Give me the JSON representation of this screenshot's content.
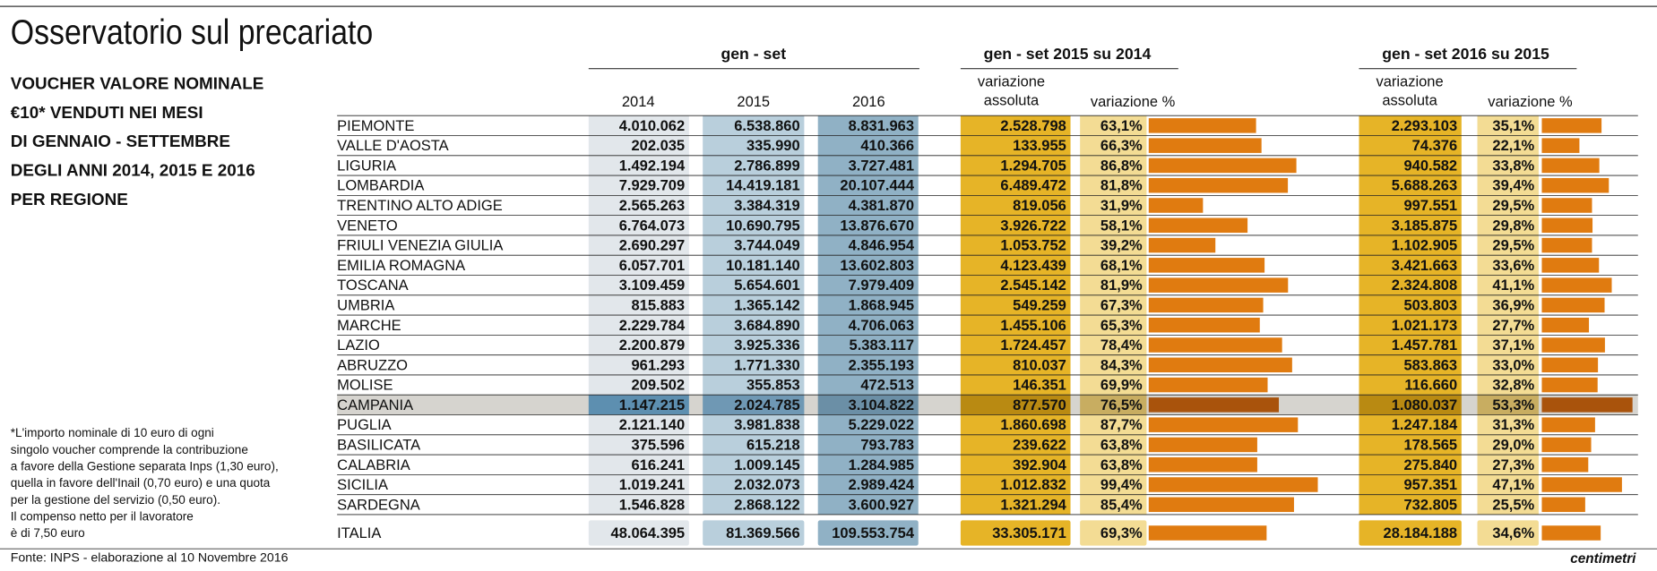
{
  "title": "Osservatorio sul precariato",
  "subtitle": [
    "VOUCHER VALORE NOMINALE",
    "€10* VENDUTI NEI MESI",
    "DI GENNAIO - SETTEMBRE",
    "DEGLI ANNI 2014, 2015 E 2016",
    "PER REGIONE"
  ],
  "headers": {
    "group1": "gen - set",
    "group2": "gen - set 2015 su 2014",
    "group3": "gen - set 2016 su 2015",
    "y2014": "2014",
    "y2015": "2015",
    "y2016": "2016",
    "abs1": [
      "variazione",
      "assoluta"
    ],
    "pct1": "variazione %",
    "abs2": [
      "variazione",
      "assoluta"
    ],
    "pct2": "variazione %"
  },
  "rows": [
    {
      "region": "PIEMONTE",
      "y2014": "4.010.062",
      "y2015": "6.538.860",
      "y2016": "8.831.963",
      "abs1": "2.528.798",
      "pct1": 63.1,
      "pct1_label": "63,1%",
      "abs2": "2.293.103",
      "pct2": 35.1,
      "pct2_label": "35,1%"
    },
    {
      "region": "VALLE D'AOSTA",
      "y2014": "202.035",
      "y2015": "335.990",
      "y2016": "410.366",
      "abs1": "133.955",
      "pct1": 66.3,
      "pct1_label": "66,3%",
      "abs2": "74.376",
      "pct2": 22.1,
      "pct2_label": "22,1%"
    },
    {
      "region": "LIGURIA",
      "y2014": "1.492.194",
      "y2015": "2.786.899",
      "y2016": "3.727.481",
      "abs1": "1.294.705",
      "pct1": 86.8,
      "pct1_label": "86,8%",
      "abs2": "940.582",
      "pct2": 33.8,
      "pct2_label": "33,8%"
    },
    {
      "region": "LOMBARDIA",
      "y2014": "7.929.709",
      "y2015": "14.419.181",
      "y2016": "20.107.444",
      "abs1": "6.489.472",
      "pct1": 81.8,
      "pct1_label": "81,8%",
      "abs2": "5.688.263",
      "pct2": 39.4,
      "pct2_label": "39,4%"
    },
    {
      "region": "TRENTINO ALTO ADIGE",
      "y2014": "2.565.263",
      "y2015": "3.384.319",
      "y2016": "4.381.870",
      "abs1": "819.056",
      "pct1": 31.9,
      "pct1_label": "31,9%",
      "abs2": "997.551",
      "pct2": 29.5,
      "pct2_label": "29,5%"
    },
    {
      "region": "VENETO",
      "y2014": "6.764.073",
      "y2015": "10.690.795",
      "y2016": "13.876.670",
      "abs1": "3.926.722",
      "pct1": 58.1,
      "pct1_label": "58,1%",
      "abs2": "3.185.875",
      "pct2": 29.8,
      "pct2_label": "29,8%"
    },
    {
      "region": "FRIULI VENEZIA GIULIA",
      "y2014": "2.690.297",
      "y2015": "3.744.049",
      "y2016": "4.846.954",
      "abs1": "1.053.752",
      "pct1": 39.2,
      "pct1_label": "39,2%",
      "abs2": "1.102.905",
      "pct2": 29.5,
      "pct2_label": "29,5%"
    },
    {
      "region": "EMILIA ROMAGNA",
      "y2014": "6.057.701",
      "y2015": "10.181.140",
      "y2016": "13.602.803",
      "abs1": "4.123.439",
      "pct1": 68.1,
      "pct1_label": "68,1%",
      "abs2": "3.421.663",
      "pct2": 33.6,
      "pct2_label": "33,6%"
    },
    {
      "region": "TOSCANA",
      "y2014": "3.109.459",
      "y2015": "5.654.601",
      "y2016": "7.979.409",
      "abs1": "2.545.142",
      "pct1": 81.9,
      "pct1_label": "81,9%",
      "abs2": "2.324.808",
      "pct2": 41.1,
      "pct2_label": "41,1%"
    },
    {
      "region": "UMBRIA",
      "y2014": "815.883",
      "y2015": "1.365.142",
      "y2016": "1.868.945",
      "abs1": "549.259",
      "pct1": 67.3,
      "pct1_label": "67,3%",
      "abs2": "503.803",
      "pct2": 36.9,
      "pct2_label": "36,9%"
    },
    {
      "region": "MARCHE",
      "y2014": "2.229.784",
      "y2015": "3.684.890",
      "y2016": "4.706.063",
      "abs1": "1.455.106",
      "pct1": 65.3,
      "pct1_label": "65,3%",
      "abs2": "1.021.173",
      "pct2": 27.7,
      "pct2_label": "27,7%"
    },
    {
      "region": "LAZIO",
      "y2014": "2.200.879",
      "y2015": "3.925.336",
      "y2016": "5.383.117",
      "abs1": "1.724.457",
      "pct1": 78.4,
      "pct1_label": "78,4%",
      "abs2": "1.457.781",
      "pct2": 37.1,
      "pct2_label": "37,1%"
    },
    {
      "region": "ABRUZZO",
      "y2014": "961.293",
      "y2015": "1.771.330",
      "y2016": "2.355.193",
      "abs1": "810.037",
      "pct1": 84.3,
      "pct1_label": "84,3%",
      "abs2": "583.863",
      "pct2": 33.0,
      "pct2_label": "33,0%"
    },
    {
      "region": "MOLISE",
      "y2014": "209.502",
      "y2015": "355.853",
      "y2016": "472.513",
      "abs1": "146.351",
      "pct1": 69.9,
      "pct1_label": "69,9%",
      "abs2": "116.660",
      "pct2": 32.8,
      "pct2_label": "32,8%"
    },
    {
      "region": "CAMPANIA",
      "y2014": "1.147.215",
      "y2015": "2.024.785",
      "y2016": "3.104.822",
      "abs1": "877.570",
      "pct1": 76.5,
      "pct1_label": "76,5%",
      "abs2": "1.080.037",
      "pct2": 53.3,
      "pct2_label": "53,3%"
    },
    {
      "region": "PUGLIA",
      "y2014": "2.121.140",
      "y2015": "3.981.838",
      "y2016": "5.229.022",
      "abs1": "1.860.698",
      "pct1": 87.7,
      "pct1_label": "87,7%",
      "abs2": "1.247.184",
      "pct2": 31.3,
      "pct2_label": "31,3%"
    },
    {
      "region": "BASILICATA",
      "y2014": "375.596",
      "y2015": "615.218",
      "y2016": "793.783",
      "abs1": "239.622",
      "pct1": 63.8,
      "pct1_label": "63,8%",
      "abs2": "178.565",
      "pct2": 29.0,
      "pct2_label": "29,0%"
    },
    {
      "region": "CALABRIA",
      "y2014": "616.241",
      "y2015": "1.009.145",
      "y2016": "1.284.985",
      "abs1": "392.904",
      "pct1": 63.8,
      "pct1_label": "63,8%",
      "abs2": "275.840",
      "pct2": 27.3,
      "pct2_label": "27,3%"
    },
    {
      "region": "SICILIA",
      "y2014": "1.019.241",
      "y2015": "2.032.073",
      "y2016": "2.989.424",
      "abs1": "1.012.832",
      "pct1": 99.4,
      "pct1_label": "99,4%",
      "abs2": "957.351",
      "pct2": 47.1,
      "pct2_label": "47,1%"
    },
    {
      "region": "SARDEGNA",
      "y2014": "1.546.828",
      "y2015": "2.868.122",
      "y2016": "3.600.927",
      "abs1": "1.321.294",
      "pct1": 85.4,
      "pct1_label": "85,4%",
      "abs2": "732.805",
      "pct2": 25.5,
      "pct2_label": "25,5%"
    }
  ],
  "total": {
    "region": "ITALIA",
    "y2014": "48.064.395",
    "y2015": "81.369.566",
    "y2016": "109.553.754",
    "abs1": "33.305.171",
    "pct1": 69.3,
    "pct1_label": "69,3%",
    "abs2": "28.184.188",
    "pct2": 34.6,
    "pct2_label": "34,6%"
  },
  "footnote": [
    "*L'importo nominale di 10 euro di ogni",
    "singolo voucher comprende la contribuzione",
    "a favore della Gestione separata Inps (1,30 euro),",
    "quella in favore dell'Inail (0,70 euro) e una quota",
    "per la gestione del servizio (0,50 euro).",
    "Il compenso netto per il lavoratore",
    "è di 7,50 euro"
  ],
  "source": "Fonte: INPS - elaborazione al 10 Novembre 2016",
  "logo": "centimetri"
}
